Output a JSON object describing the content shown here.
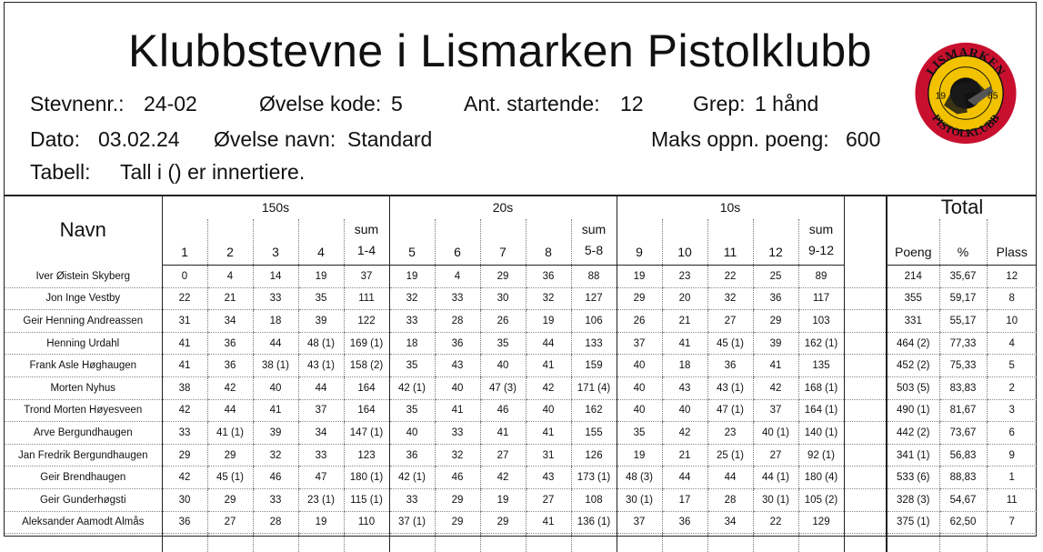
{
  "title": "Klubbstevne i Lismarken Pistolklubb",
  "info": {
    "stevnenr_label": "Stevnenr.:",
    "stevnenr": "24-02",
    "ovelse_kode_label": "Øvelse kode:",
    "ovelse_kode": "5",
    "ant_startende_label": "Ant. startende:",
    "ant_startende": "12",
    "grep_label": "Grep:",
    "grep": "1 hånd",
    "dato_label": "Dato:",
    "dato": "03.02.24",
    "ovelse_navn_label": "Øvelse navn:",
    "ovelse_navn": "Standard",
    "maks_label": "Maks oppn. poeng:",
    "maks": "600",
    "tabell_label": "Tabell:",
    "tabell": "Tall i () er innertiere."
  },
  "logo": {
    "top_text": "LISMARKEN",
    "bottom_text": "PISTOLKLUBB",
    "year_left": "19",
    "year_right": "85"
  },
  "headers": {
    "navn": "Navn",
    "group1": "150s",
    "group2": "20s",
    "group3": "10s",
    "total": "Total",
    "sum_word": "sum",
    "cols": [
      "1",
      "2",
      "3",
      "4",
      "1-4",
      "5",
      "6",
      "7",
      "8",
      "5-8",
      "9",
      "10",
      "11",
      "12",
      "9-12"
    ],
    "poeng": "Poeng",
    "pct": "%",
    "plass": "Plass"
  },
  "rows": [
    {
      "navn": "Iver Øistein Skyberg",
      "s": [
        "0",
        "4",
        "14",
        "19",
        "37",
        "19",
        "4",
        "29",
        "36",
        "88",
        "19",
        "23",
        "22",
        "25",
        "89"
      ],
      "poeng": "214",
      "pct": "35,67",
      "plass": "12"
    },
    {
      "navn": "Jon Inge Vestby",
      "s": [
        "22",
        "21",
        "33",
        "35",
        "111",
        "32",
        "33",
        "30",
        "32",
        "127",
        "29",
        "20",
        "32",
        "36",
        "117"
      ],
      "poeng": "355",
      "pct": "59,17",
      "plass": "8"
    },
    {
      "navn": "Geir Henning Andreassen",
      "s": [
        "31",
        "34",
        "18",
        "39",
        "122",
        "33",
        "28",
        "26",
        "19",
        "106",
        "26",
        "21",
        "27",
        "29",
        "103"
      ],
      "poeng": "331",
      "pct": "55,17",
      "plass": "10"
    },
    {
      "navn": "Henning Urdahl",
      "s": [
        "41",
        "36",
        "44",
        "48 (1)",
        "169 (1)",
        "18",
        "36",
        "35",
        "44",
        "133",
        "37",
        "41",
        "45 (1)",
        "39",
        "162 (1)"
      ],
      "poeng": "464 (2)",
      "pct": "77,33",
      "plass": "4"
    },
    {
      "navn": "Frank Asle Høghaugen",
      "s": [
        "41",
        "36",
        "38 (1)",
        "43 (1)",
        "158 (2)",
        "35",
        "43",
        "40",
        "41",
        "159",
        "40",
        "18",
        "36",
        "41",
        "135"
      ],
      "poeng": "452 (2)",
      "pct": "75,33",
      "plass": "5"
    },
    {
      "navn": "Morten Nyhus",
      "s": [
        "38",
        "42",
        "40",
        "44",
        "164",
        "42 (1)",
        "40",
        "47 (3)",
        "42",
        "171 (4)",
        "40",
        "43",
        "43 (1)",
        "42",
        "168 (1)"
      ],
      "poeng": "503 (5)",
      "pct": "83,83",
      "plass": "2"
    },
    {
      "navn": "Trond Morten Høyesveen",
      "s": [
        "42",
        "44",
        "41",
        "37",
        "164",
        "35",
        "41",
        "46",
        "40",
        "162",
        "40",
        "40",
        "47 (1)",
        "37",
        "164 (1)"
      ],
      "poeng": "490 (1)",
      "pct": "81,67",
      "plass": "3"
    },
    {
      "navn": "Arve Bergundhaugen",
      "s": [
        "33",
        "41 (1)",
        "39",
        "34",
        "147 (1)",
        "40",
        "33",
        "41",
        "41",
        "155",
        "35",
        "42",
        "23",
        "40 (1)",
        "140 (1)"
      ],
      "poeng": "442 (2)",
      "pct": "73,67",
      "plass": "6"
    },
    {
      "navn": "Jan Fredrik Bergundhaugen",
      "s": [
        "29",
        "29",
        "32",
        "33",
        "123",
        "36",
        "32",
        "27",
        "31",
        "126",
        "19",
        "21",
        "25 (1)",
        "27",
        "92 (1)"
      ],
      "poeng": "341 (1)",
      "pct": "56,83",
      "plass": "9"
    },
    {
      "navn": "Geir Brendhaugen",
      "s": [
        "42",
        "45 (1)",
        "46",
        "47",
        "180 (1)",
        "42 (1)",
        "46",
        "42",
        "43",
        "173 (1)",
        "48 (3)",
        "44",
        "44",
        "44 (1)",
        "180 (4)"
      ],
      "poeng": "533 (6)",
      "pct": "88,83",
      "plass": "1"
    },
    {
      "navn": "Geir Gunderhøgsti",
      "s": [
        "30",
        "29",
        "33",
        "23 (1)",
        "115 (1)",
        "33",
        "29",
        "19",
        "27",
        "108",
        "30 (1)",
        "17",
        "28",
        "30 (1)",
        "105 (2)"
      ],
      "poeng": "328 (3)",
      "pct": "54,67",
      "plass": "11"
    },
    {
      "navn": "Aleksander Aamodt Almås",
      "s": [
        "36",
        "27",
        "28",
        "19",
        "110",
        "37 (1)",
        "29",
        "29",
        "41",
        "136 (1)",
        "37",
        "36",
        "34",
        "22",
        "129"
      ],
      "poeng": "375 (1)",
      "pct": "62,50",
      "plass": "7"
    }
  ],
  "colors": {
    "logo_red": "#c8102e",
    "logo_yellow": "#f2c200",
    "border": "#222222"
  }
}
